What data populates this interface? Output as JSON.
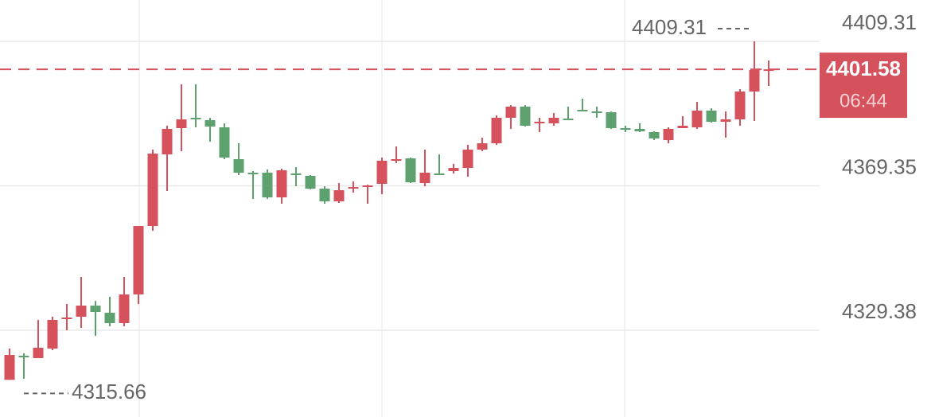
{
  "chart_data": {
    "type": "candlestick",
    "up_color": "#d5515c",
    "down_color": "#5da16f",
    "ylim": [
      4305.38,
      4420.76
    ],
    "yticks": [
      4409.31,
      4369.35,
      4329.38
    ],
    "grid": true,
    "high_annotation": 4409.31,
    "low_annotation": 4315.66,
    "current_price": 4401.58,
    "countdown": "06:44",
    "open": [
      4315.66,
      4322.33,
      4321.67,
      4324.31,
      4332.46,
      4333.12,
      4336.2,
      4334.22,
      4331.36,
      4339.29,
      4358.22,
      4378.04,
      4385.31,
      4388.17,
      4387.51,
      4385.53,
      4376.72,
      4372.98,
      4372.98,
      4366.15,
      4372.76,
      4372.1,
      4368.57,
      4365.05,
      4368.57,
      4369.01,
      4369.89,
      4376.28,
      4376.94,
      4370.11,
      4372.76,
      4373.42,
      4374.3,
      4379.36,
      4381.12,
      4388.17,
      4391.25,
      4386.63,
      4386.63,
      4387.95,
      4390.37,
      4389.93,
      4389.71,
      4385.31,
      4385.09,
      4384.21,
      4382.01,
      4385.31,
      4385.53,
      4390.15,
      4387.07,
      4387.73,
      4395.44,
      4401.38
    ],
    "high": [
      4324.31,
      4322.99,
      4332.24,
      4333.12,
      4336.64,
      4344.13,
      4337.52,
      4338.63,
      4344.13,
      4358.22,
      4379.36,
      4385.97,
      4397.42,
      4397.42,
      4388.17,
      4386.63,
      4381.12,
      4373.42,
      4373.86,
      4374.08,
      4374.52,
      4372.32,
      4369.23,
      4370.11,
      4370.55,
      4369.67,
      4377.16,
      4380.24,
      4377.16,
      4379.36,
      4378.04,
      4375.4,
      4380.68,
      4382.67,
      4388.83,
      4391.69,
      4391.69,
      4388.17,
      4389.49,
      4391.25,
      4393.46,
      4391.25,
      4389.93,
      4385.97,
      4386.63,
      4384.43,
      4385.53,
      4388.61,
      4392.57,
      4390.81,
      4389.93,
      4396.1,
      4409.31,
      4404.03
    ],
    "low": [
      4315.66,
      4315.95,
      4321.67,
      4323.87,
      4329.38,
      4330.04,
      4327.84,
      4330.48,
      4330.48,
      4336.64,
      4356.9,
      4367.91,
      4378.92,
      4385.53,
      4381.56,
      4376.72,
      4372.32,
      4365.71,
      4365.71,
      4364.39,
      4369.23,
      4368.35,
      4364.39,
      4364.61,
      4367.47,
      4364.39,
      4367.03,
      4375.62,
      4370.11,
      4369.23,
      4372.32,
      4372.76,
      4371.88,
      4378.92,
      4380.68,
      4385.09,
      4385.75,
      4384.21,
      4385.97,
      4387.51,
      4389.93,
      4388.17,
      4385.09,
      4384.21,
      4384.21,
      4382.01,
      4381.12,
      4385.31,
      4385.09,
      4386.85,
      4382.67,
      4385.97,
      4387.29,
      4396.98
    ],
    "close": [
      4322.55,
      4321.89,
      4324.53,
      4332.24,
      4332.9,
      4336.2,
      4334.44,
      4331.36,
      4339.29,
      4358.22,
      4378.26,
      4385.09,
      4387.73,
      4387.73,
      4385.75,
      4377.16,
      4372.98,
      4372.76,
      4366.15,
      4373.64,
      4372.32,
      4368.57,
      4365.05,
      4368.13,
      4369.01,
      4369.45,
      4376.28,
      4376.72,
      4370.33,
      4372.98,
      4372.32,
      4374.3,
      4379.36,
      4381.12,
      4388.17,
      4391.25,
      4385.97,
      4387.07,
      4388.17,
      4387.51,
      4389.93,
      4389.49,
      4385.31,
      4384.87,
      4384.43,
      4382.45,
      4385.09,
      4385.97,
      4390.15,
      4387.07,
      4387.73,
      4395.44,
      4401.38,
      4401.58
    ]
  }
}
